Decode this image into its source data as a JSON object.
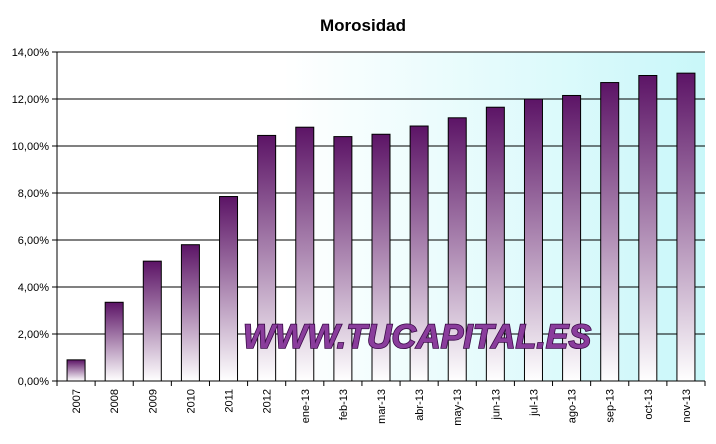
{
  "chart_data": {
    "type": "bar",
    "title": "Morosidad",
    "xlabel": "",
    "ylabel": "",
    "categories": [
      "2007",
      "2008",
      "2009",
      "2010",
      "2011",
      "2012",
      "ene-13",
      "feb-13",
      "mar-13",
      "abr-13",
      "may-13",
      "jun-13",
      "jul-13",
      "ago-13",
      "sep-13",
      "oct-13",
      "nov-13"
    ],
    "values": [
      0.9,
      3.35,
      5.1,
      5.8,
      7.85,
      10.45,
      10.8,
      10.4,
      10.5,
      10.85,
      11.2,
      11.65,
      12.0,
      12.15,
      12.7,
      13.0,
      13.1
    ],
    "ylim": [
      0,
      14
    ],
    "yticks": [
      "0,00%",
      "2,00%",
      "4,00%",
      "6,00%",
      "8,00%",
      "10,00%",
      "12,00%",
      "14,00%"
    ],
    "grid": true,
    "legend": "none"
  },
  "watermark": "WWW.TUCAPITAL.ES",
  "colors": {
    "bar_top": "#5c1466",
    "bar_bottom": "#ffffff",
    "plot_bg_left": "#ffffff",
    "plot_bg_right": "#c9f7f9",
    "grid": "#000000"
  }
}
